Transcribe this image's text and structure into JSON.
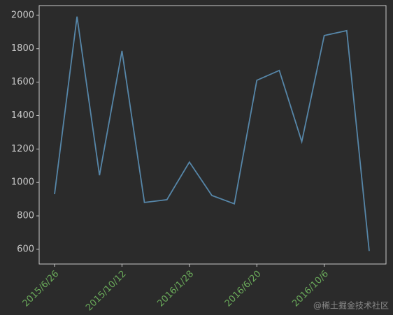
{
  "chart_data": {
    "type": "line",
    "categories": [
      "2015/6/26",
      null,
      null,
      "2015/10/12",
      null,
      null,
      "2016/1/28",
      null,
      null,
      "2016/6/20",
      null,
      null,
      "2016/10/6",
      null,
      null
    ],
    "series": [
      {
        "color": "#5686a8",
        "values": [
          930,
          1992,
          1043,
          1787,
          880,
          897,
          1122,
          922,
          872,
          1611,
          1670,
          1244,
          1879,
          1908,
          590
        ]
      }
    ],
    "ylim": [
      512,
      2058
    ],
    "yticks": [
      600,
      800,
      1000,
      1200,
      1400,
      1600,
      1800,
      2000
    ],
    "xtick_color": "#6aaa5a",
    "watermark": "@稀土掘金技术社区"
  }
}
